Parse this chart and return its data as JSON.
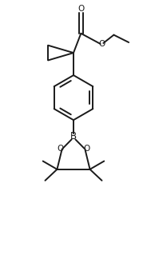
{
  "background_color": "#ffffff",
  "line_color": "#1a1a1a",
  "line_width": 1.4,
  "font_size": 7.5,
  "figsize": [
    1.84,
    3.19
  ],
  "dpi": 100,
  "xlim": [
    0,
    9
  ],
  "ylim": [
    0,
    17
  ]
}
